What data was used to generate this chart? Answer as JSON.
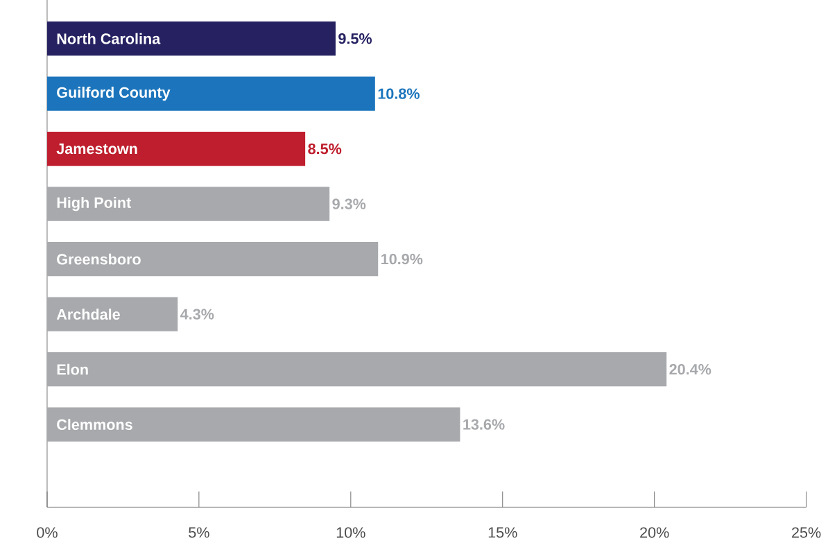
{
  "chart_data": {
    "type": "bar",
    "orientation": "horizontal",
    "categories": [
      "North Carolina",
      "Guilford County",
      "Jamestown",
      "High Point",
      "Greensboro",
      "Archdale",
      "Elon",
      "Clemmons"
    ],
    "values": [
      9.5,
      10.8,
      8.5,
      9.3,
      10.9,
      4.3,
      20.4,
      13.6
    ],
    "value_labels": [
      "9.5%",
      "10.8%",
      "8.5%",
      "9.3%",
      "10.9%",
      "4.3%",
      "20.4%",
      "13.6%"
    ],
    "colors": [
      "#262262",
      "#1c75bc",
      "#be1e2d",
      "#a7a9ac",
      "#a7a9ac",
      "#a7a9ac",
      "#a7a9ac",
      "#a7a9ac"
    ],
    "xlim": [
      0,
      25
    ],
    "xticks": [
      {
        "value": 0,
        "label": "0%"
      },
      {
        "value": 5,
        "label": "5%"
      },
      {
        "value": 10,
        "label": "10%"
      },
      {
        "value": 15,
        "label": "15%"
      },
      {
        "value": 20,
        "label": "20%"
      },
      {
        "value": 25,
        "label": "25%"
      }
    ],
    "grid": false
  }
}
